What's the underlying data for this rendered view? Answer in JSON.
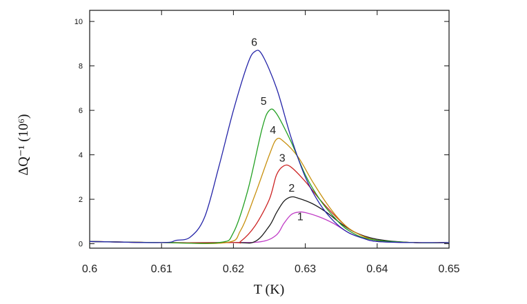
{
  "chart_data": {
    "type": "line",
    "title": "",
    "xlabel": "T (K)",
    "ylabel": "ΔQ⁻¹ (10⁶)",
    "xlim": [
      0.6,
      0.65
    ],
    "ylim": [
      -0.2,
      10.5
    ],
    "x_ticks": [
      "0.6",
      "0.61",
      "0.62",
      "0.63",
      "0.64",
      "0.65"
    ],
    "y_ticks": [
      "0",
      "2",
      "4",
      "6",
      "8",
      "10"
    ],
    "grid": false,
    "series": [
      {
        "name": "1",
        "color": "#c03cc6",
        "points": [
          [
            0.6,
            0.1
          ],
          [
            0.61,
            0.05
          ],
          [
            0.62,
            0.05
          ],
          [
            0.624,
            0.1
          ],
          [
            0.626,
            0.4
          ],
          [
            0.627,
            0.9
          ],
          [
            0.628,
            1.3
          ],
          [
            0.629,
            1.42
          ],
          [
            0.63,
            1.4
          ],
          [
            0.632,
            1.2
          ],
          [
            0.634,
            0.9
          ],
          [
            0.636,
            0.5
          ],
          [
            0.638,
            0.25
          ],
          [
            0.64,
            0.1
          ],
          [
            0.645,
            0.05
          ],
          [
            0.65,
            0.05
          ]
        ]
      },
      {
        "name": "2",
        "color": "#1a1a1a",
        "points": [
          [
            0.6,
            0.1
          ],
          [
            0.61,
            0.05
          ],
          [
            0.62,
            0.05
          ],
          [
            0.623,
            0.1
          ],
          [
            0.625,
            0.8
          ],
          [
            0.626,
            1.4
          ],
          [
            0.627,
            1.9
          ],
          [
            0.628,
            2.1
          ],
          [
            0.629,
            2.05
          ],
          [
            0.631,
            1.8
          ],
          [
            0.633,
            1.4
          ],
          [
            0.635,
            0.9
          ],
          [
            0.637,
            0.5
          ],
          [
            0.64,
            0.2
          ],
          [
            0.645,
            0.05
          ],
          [
            0.65,
            0.05
          ]
        ]
      },
      {
        "name": "3",
        "color": "#cc2222",
        "points": [
          [
            0.6,
            0.1
          ],
          [
            0.61,
            0.05
          ],
          [
            0.62,
            0.05
          ],
          [
            0.621,
            0.1
          ],
          [
            0.623,
            0.8
          ],
          [
            0.625,
            2.0
          ],
          [
            0.626,
            3.1
          ],
          [
            0.627,
            3.5
          ],
          [
            0.628,
            3.45
          ],
          [
            0.63,
            2.8
          ],
          [
            0.632,
            2.0
          ],
          [
            0.634,
            1.3
          ],
          [
            0.636,
            0.7
          ],
          [
            0.638,
            0.35
          ],
          [
            0.64,
            0.15
          ],
          [
            0.645,
            0.05
          ],
          [
            0.65,
            0.05
          ]
        ]
      },
      {
        "name": "4",
        "color": "#c8900e",
        "points": [
          [
            0.6,
            0.1
          ],
          [
            0.61,
            0.05
          ],
          [
            0.619,
            0.05
          ],
          [
            0.621,
            0.6
          ],
          [
            0.623,
            2.2
          ],
          [
            0.625,
            4.0
          ],
          [
            0.626,
            4.7
          ],
          [
            0.627,
            4.6
          ],
          [
            0.629,
            3.9
          ],
          [
            0.631,
            2.8
          ],
          [
            0.633,
            1.8
          ],
          [
            0.635,
            1.0
          ],
          [
            0.637,
            0.5
          ],
          [
            0.64,
            0.15
          ],
          [
            0.645,
            0.05
          ],
          [
            0.65,
            0.05
          ]
        ]
      },
      {
        "name": "5",
        "color": "#22a022",
        "points": [
          [
            0.6,
            0.1
          ],
          [
            0.61,
            0.05
          ],
          [
            0.618,
            0.05
          ],
          [
            0.62,
            0.5
          ],
          [
            0.622,
            2.4
          ],
          [
            0.624,
            5.2
          ],
          [
            0.625,
            6.0
          ],
          [
            0.626,
            5.85
          ],
          [
            0.628,
            4.6
          ],
          [
            0.63,
            3.1
          ],
          [
            0.632,
            2.0
          ],
          [
            0.634,
            1.2
          ],
          [
            0.636,
            0.6
          ],
          [
            0.639,
            0.2
          ],
          [
            0.645,
            0.05
          ],
          [
            0.65,
            0.05
          ]
        ]
      },
      {
        "name": "6",
        "color": "#2424a8",
        "points": [
          [
            0.6,
            0.1
          ],
          [
            0.61,
            0.05
          ],
          [
            0.612,
            0.15
          ],
          [
            0.614,
            0.3
          ],
          [
            0.616,
            1.2
          ],
          [
            0.618,
            3.5
          ],
          [
            0.62,
            6.0
          ],
          [
            0.622,
            8.1
          ],
          [
            0.623,
            8.65
          ],
          [
            0.624,
            8.5
          ],
          [
            0.626,
            7.0
          ],
          [
            0.628,
            4.8
          ],
          [
            0.63,
            3.0
          ],
          [
            0.632,
            1.8
          ],
          [
            0.634,
            1.0
          ],
          [
            0.636,
            0.5
          ],
          [
            0.638,
            0.25
          ],
          [
            0.64,
            0.1
          ],
          [
            0.645,
            0.05
          ],
          [
            0.65,
            0.05
          ]
        ]
      }
    ],
    "curve_labels": [
      {
        "text": "1",
        "x": 0.6293,
        "y": 1.05
      },
      {
        "text": "2",
        "x": 0.6281,
        "y": 2.35
      },
      {
        "text": "3",
        "x": 0.6268,
        "y": 3.7
      },
      {
        "text": "4",
        "x": 0.6255,
        "y": 4.95
      },
      {
        "text": "5",
        "x": 0.6242,
        "y": 6.25
      },
      {
        "text": "6",
        "x": 0.6229,
        "y": 8.9
      }
    ]
  }
}
